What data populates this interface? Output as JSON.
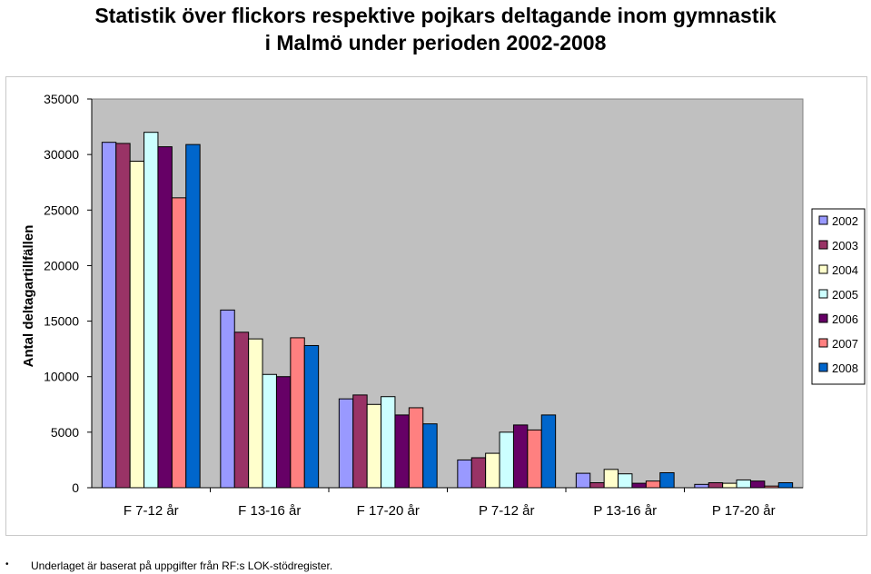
{
  "chart_data": {
    "type": "bar",
    "title_line1": "Statistik över flickors respektive pojkars deltagande inom gymnastik",
    "title_line2": "i Malmö under perioden 2002-2008",
    "xlabel": "",
    "ylabel": "Antal deltagartillfällen",
    "ylim": [
      0,
      35000
    ],
    "yticks": [
      0,
      5000,
      10000,
      15000,
      20000,
      25000,
      30000,
      35000
    ],
    "grid": false,
    "legend_position": "right",
    "categories": [
      "F 7-12 år",
      "F 13-16 år",
      "F 17-20 år",
      "P 7-12 år",
      "P 13-16 år",
      "P 17-20 år"
    ],
    "series": [
      {
        "name": "2002",
        "color": "#9999FF",
        "values": [
          31100,
          16000,
          8000,
          2500,
          1300,
          300
        ]
      },
      {
        "name": "2003",
        "color": "#993366",
        "values": [
          31000,
          14000,
          8350,
          2700,
          450,
          450
        ]
      },
      {
        "name": "2004",
        "color": "#FFFFCC",
        "values": [
          29400,
          13400,
          7500,
          3100,
          1650,
          400
        ]
      },
      {
        "name": "2005",
        "color": "#CCFFFF",
        "values": [
          32000,
          10200,
          8200,
          5000,
          1250,
          700
        ]
      },
      {
        "name": "2006",
        "color": "#660066",
        "values": [
          30700,
          10000,
          6550,
          5650,
          400,
          600
        ]
      },
      {
        "name": "2007",
        "color": "#FF8080",
        "values": [
          26100,
          13500,
          7200,
          5200,
          600,
          150
        ]
      },
      {
        "name": "2008",
        "color": "#0066CC",
        "values": [
          30900,
          12800,
          5750,
          6550,
          1350,
          450
        ]
      }
    ],
    "plot_background": "#C0C0C0"
  },
  "footer": {
    "bullet": "•",
    "text": "Underlaget är baserat på uppgifter från RF:s LOK-stödregister."
  }
}
